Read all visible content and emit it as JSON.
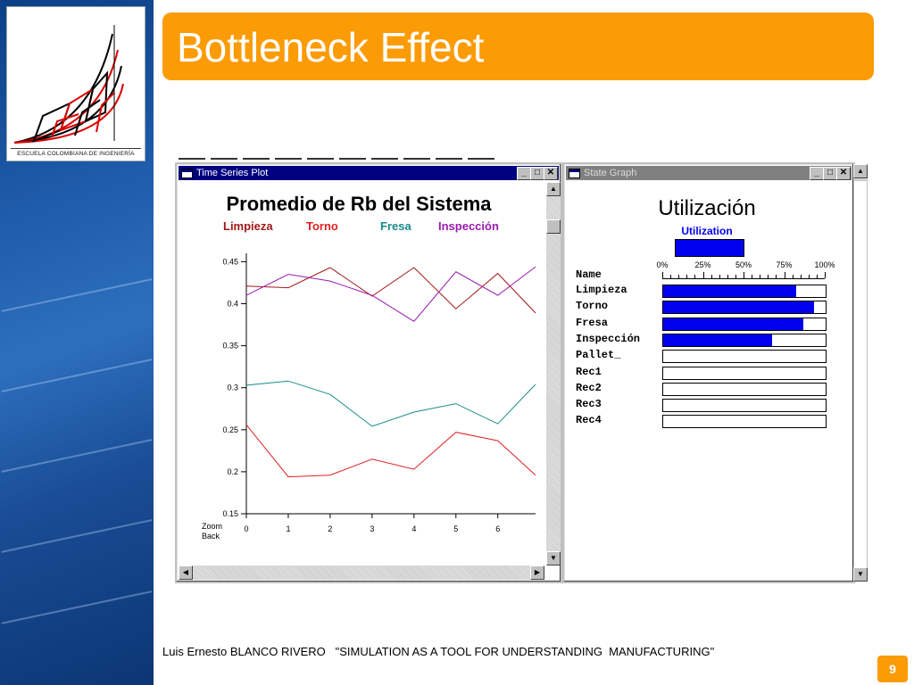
{
  "slide": {
    "title": "Bottleneck Effect",
    "page_number": "9",
    "footer": "Luis Ernesto BLANCO RIVERO   \"SIMULATION AS A TOOL FOR UNDERSTANDING  MANUFACTURING\"",
    "logo_caption": "ESCUELA COLOMBIANA DE INGENIERÍA",
    "accent_color": "#fb9b06",
    "sidebar_color": "#1f5cab"
  },
  "time_series_window": {
    "title": "Time Series Plot",
    "zoom_label_1": "Zoom",
    "zoom_label_2": "Back"
  },
  "state_graph_window": {
    "title": "State Graph"
  },
  "chart_data": [
    {
      "type": "line",
      "title": "Promedio de Rb del Sistema",
      "x": [
        0,
        1,
        2,
        3,
        4,
        5,
        6,
        6.9
      ],
      "x_ticks": [
        "0",
        "1",
        "2",
        "3",
        "4",
        "5",
        "6"
      ],
      "y_ticks": [
        "0.15",
        "0.2",
        "0.25",
        "0.3",
        "0.35",
        "0.4",
        "0.45"
      ],
      "xlim": [
        0,
        6.9
      ],
      "ylim": [
        0.15,
        0.46
      ],
      "grid": false,
      "legend_position": "top",
      "series": [
        {
          "name": "Limpieza",
          "color": "#a01818",
          "values": [
            0.421,
            0.419,
            0.443,
            0.409,
            0.443,
            0.394,
            0.436,
            0.389
          ]
        },
        {
          "name": "Torno",
          "color": "#e02020",
          "values": [
            0.256,
            0.194,
            0.196,
            0.215,
            0.203,
            0.247,
            0.237,
            0.196
          ]
        },
        {
          "name": "Fresa",
          "color": "#188a8a",
          "values": [
            0.303,
            0.308,
            0.292,
            0.254,
            0.271,
            0.281,
            0.257,
            0.304
          ]
        },
        {
          "name": "Inspección",
          "color": "#9a1ab0",
          "values": [
            0.41,
            0.435,
            0.427,
            0.41,
            0.379,
            0.438,
            0.41,
            0.444
          ]
        }
      ]
    },
    {
      "type": "bar",
      "title": "Utilización",
      "legend_entry": "Utilization",
      "legend_color": "#0000ee",
      "header": "Name",
      "x_ticks": [
        "0%",
        "25%",
        "50%",
        "75%",
        "100%"
      ],
      "xlim": [
        0,
        100
      ],
      "categories": [
        "Limpieza",
        "Torno",
        "Fresa",
        "Inspección",
        "Pallet_",
        "Rec1",
        "Rec2",
        "Rec3",
        "Rec4"
      ],
      "values": [
        82,
        93,
        86,
        67,
        0,
        0,
        0,
        0,
        0
      ]
    }
  ]
}
